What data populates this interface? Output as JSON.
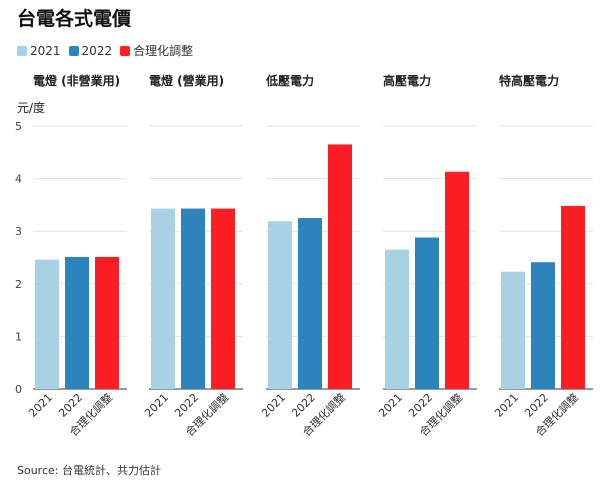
{
  "title": "台電各式電價",
  "legend": [
    {
      "label": "2021",
      "color": "#a8d1e4"
    },
    {
      "label": "2022",
      "color": "#2d84bd"
    },
    {
      "label": "合理化調整",
      "color": "#fc1e24"
    }
  ],
  "footer": "Source: 台電統計、共力估計",
  "chart_data": {
    "type": "bar",
    "ylabel": "元/度",
    "ylim": [
      0,
      5
    ],
    "yticks": [
      "0",
      "1",
      "2",
      "3",
      "4",
      "5"
    ],
    "grid": true,
    "legend_position": "top-left",
    "categories": [
      "2021",
      "2022",
      "合理化調整"
    ],
    "panels": [
      {
        "title": "電燈 (非營業用)",
        "values": [
          2.46,
          2.51,
          2.51
        ]
      },
      {
        "title": "電燈 (營業用)",
        "values": [
          3.43,
          3.43,
          3.43
        ]
      },
      {
        "title": "低壓電力",
        "values": [
          3.19,
          3.25,
          4.65
        ]
      },
      {
        "title": "高壓電力",
        "values": [
          2.65,
          2.88,
          4.13
        ]
      },
      {
        "title": "特高壓電力",
        "values": [
          2.23,
          2.41,
          3.48
        ]
      }
    ]
  }
}
